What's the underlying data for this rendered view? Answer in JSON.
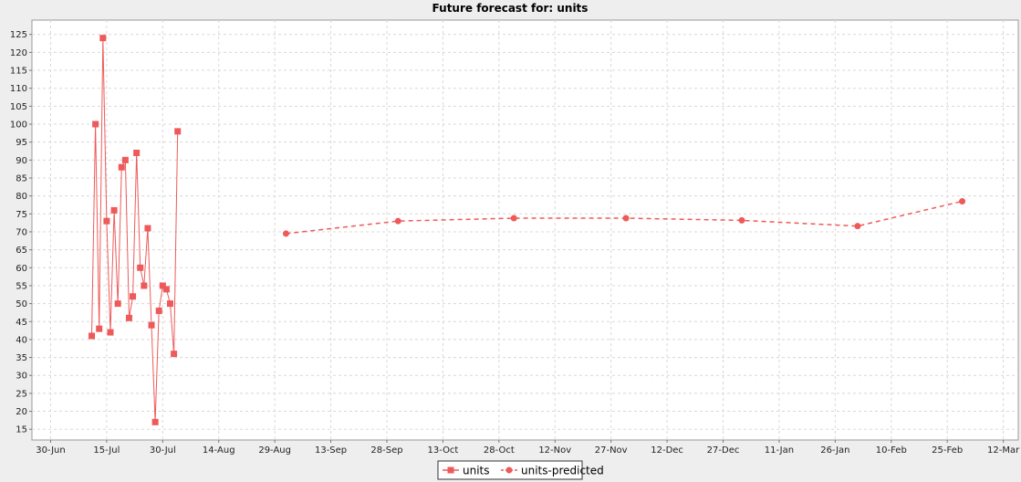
{
  "colors": {
    "series": "#ee5a5a",
    "background": "#eeeeee",
    "plot_bg": "#ffffff",
    "grid": "#d8d8d8"
  },
  "chart_data": {
    "type": "line",
    "title": "Future forecast for: units",
    "xlabel": "",
    "ylabel": "",
    "x_axis_type": "date",
    "xlim": [
      "2020-06-25",
      "2021-03-16"
    ],
    "ylim": [
      12,
      129
    ],
    "x_tick_dates": [
      "2020-06-30",
      "2020-07-15",
      "2020-07-30",
      "2020-08-14",
      "2020-08-29",
      "2020-09-13",
      "2020-09-28",
      "2020-10-13",
      "2020-10-28",
      "2020-11-12",
      "2020-11-27",
      "2020-12-12",
      "2020-12-27",
      "2021-01-11",
      "2021-01-26",
      "2021-02-10",
      "2021-02-25",
      "2021-03-12"
    ],
    "x_tick_labels": [
      "30-Jun",
      "15-Jul",
      "30-Jul",
      "14-Aug",
      "29-Aug",
      "13-Sep",
      "28-Sep",
      "13-Oct",
      "28-Oct",
      "12-Nov",
      "27-Nov",
      "12-Dec",
      "27-Dec",
      "11-Jan",
      "26-Jan",
      "10-Feb",
      "25-Feb",
      "12-Mar"
    ],
    "y_ticks": [
      15,
      20,
      25,
      30,
      35,
      40,
      45,
      50,
      55,
      60,
      65,
      70,
      75,
      80,
      85,
      90,
      95,
      100,
      105,
      110,
      115,
      120,
      125
    ],
    "grid": true,
    "legend_position": "bottom-center",
    "series": [
      {
        "name": "units",
        "marker": "square",
        "line": "solid",
        "points": [
          [
            "2020-07-11",
            41
          ],
          [
            "2020-07-12",
            100
          ],
          [
            "2020-07-13",
            43
          ],
          [
            "2020-07-14",
            124
          ],
          [
            "2020-07-15",
            73
          ],
          [
            "2020-07-16",
            42
          ],
          [
            "2020-07-17",
            76
          ],
          [
            "2020-07-18",
            50
          ],
          [
            "2020-07-19",
            88
          ],
          [
            "2020-07-20",
            90
          ],
          [
            "2020-07-21",
            46
          ],
          [
            "2020-07-22",
            52
          ],
          [
            "2020-07-23",
            92
          ],
          [
            "2020-07-24",
            60
          ],
          [
            "2020-07-25",
            55
          ],
          [
            "2020-07-26",
            71
          ],
          [
            "2020-07-27",
            44
          ],
          [
            "2020-07-28",
            17
          ],
          [
            "2020-07-29",
            48
          ],
          [
            "2020-07-30",
            55
          ],
          [
            "2020-07-31",
            54
          ],
          [
            "2020-08-01",
            50
          ],
          [
            "2020-08-02",
            36
          ],
          [
            "2020-08-03",
            98
          ]
        ]
      },
      {
        "name": "units-predicted",
        "marker": "circle",
        "line": "dashed",
        "points": [
          [
            "2020-09-01",
            69.5
          ],
          [
            "2020-10-01",
            73
          ],
          [
            "2020-11-01",
            73.8
          ],
          [
            "2020-12-01",
            73.8
          ],
          [
            "2021-01-01",
            73.2
          ],
          [
            "2021-02-01",
            71.6
          ],
          [
            "2021-03-01",
            78.5
          ]
        ]
      }
    ]
  }
}
